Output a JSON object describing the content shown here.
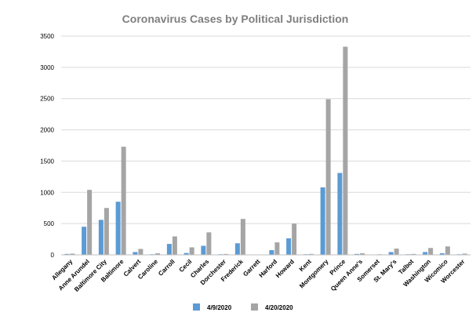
{
  "chart_data": {
    "type": "bar",
    "title": "Coronavirus Cases by Political Jurisdiction",
    "xlabel": "",
    "ylabel": "",
    "ylim": [
      0,
      3500
    ],
    "yticks": [
      0,
      500,
      1000,
      1500,
      2000,
      2500,
      3000,
      3500
    ],
    "grid": true,
    "legend_position": "bottom",
    "categories": [
      "Allegany",
      "Anne Arundel",
      "Baltimore City",
      "Baltimore",
      "Calvert",
      "Caroline",
      "Carroll",
      "Cecil",
      "Charles",
      "Dorchester",
      "Frederick",
      "Garrett",
      "Harford",
      "Howard",
      "Kent",
      "Montgomery",
      "Prince",
      "Queen Anne's",
      "Somerset",
      "St. Mary's",
      "Talbot",
      "Washington",
      "Wicomico",
      "Worcester"
    ],
    "series": [
      {
        "name": "4/9/2020",
        "color": "#5b9bd5",
        "values": [
          15,
          450,
          560,
          850,
          45,
          10,
          175,
          30,
          145,
          10,
          185,
          5,
          75,
          265,
          10,
          1080,
          1310,
          15,
          5,
          45,
          10,
          45,
          25,
          10
        ]
      },
      {
        "name": "4/20/2020",
        "color": "#a5a5a5",
        "values": [
          20,
          1040,
          750,
          1730,
          95,
          25,
          295,
          120,
          360,
          15,
          575,
          5,
          200,
          500,
          15,
          2490,
          3330,
          25,
          10,
          100,
          15,
          110,
          135,
          20
        ]
      }
    ]
  }
}
